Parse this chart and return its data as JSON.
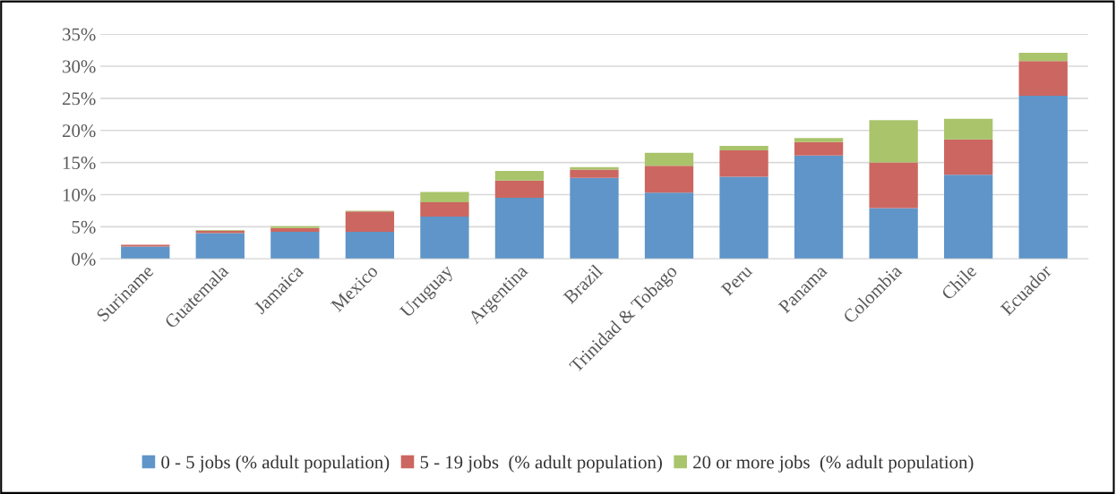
{
  "chart_data": {
    "type": "bar",
    "stacked": true,
    "categories": [
      "Suriname",
      "Guatemala",
      "Jamaica",
      "Mexico",
      "Uruguay",
      "Argentina",
      "Brazil",
      "Trinidad & Tobago",
      "Peru",
      "Panama",
      "Colombia",
      "Chile",
      "Ecuador"
    ],
    "series": [
      {
        "name": "0 - 5 jobs (% adult population)",
        "color": "#5f95c8",
        "values": [
          1.9,
          4.0,
          4.2,
          4.2,
          6.6,
          9.5,
          12.6,
          10.3,
          12.8,
          16.1,
          7.9,
          13.1,
          25.4
        ]
      },
      {
        "name": "5 - 19 jobs  (% adult population)",
        "color": "#cc6660",
        "values": [
          0.3,
          0.4,
          0.6,
          3.2,
          2.2,
          2.7,
          1.3,
          4.2,
          4.1,
          2.1,
          7.1,
          5.5,
          5.4
        ]
      },
      {
        "name": "20 or more jobs  (% adult population)",
        "color": "#a9c46b",
        "values": [
          null,
          0.1,
          0.3,
          0.1,
          1.6,
          1.5,
          0.4,
          2.0,
          0.7,
          0.6,
          6.6,
          3.2,
          1.3
        ]
      }
    ],
    "ylim": [
      0,
      35
    ],
    "yticks": [
      {
        "value": 0,
        "label": "0%"
      },
      {
        "value": 5,
        "label": "5%"
      },
      {
        "value": 10,
        "label": "10%"
      },
      {
        "value": 15,
        "label": "15%"
      },
      {
        "value": 20,
        "label": "20%"
      },
      {
        "value": 25,
        "label": "25%"
      },
      {
        "value": 30,
        "label": "30%"
      },
      {
        "value": 35,
        "label": "35%"
      }
    ],
    "grid": "y",
    "legend": "bottom"
  }
}
